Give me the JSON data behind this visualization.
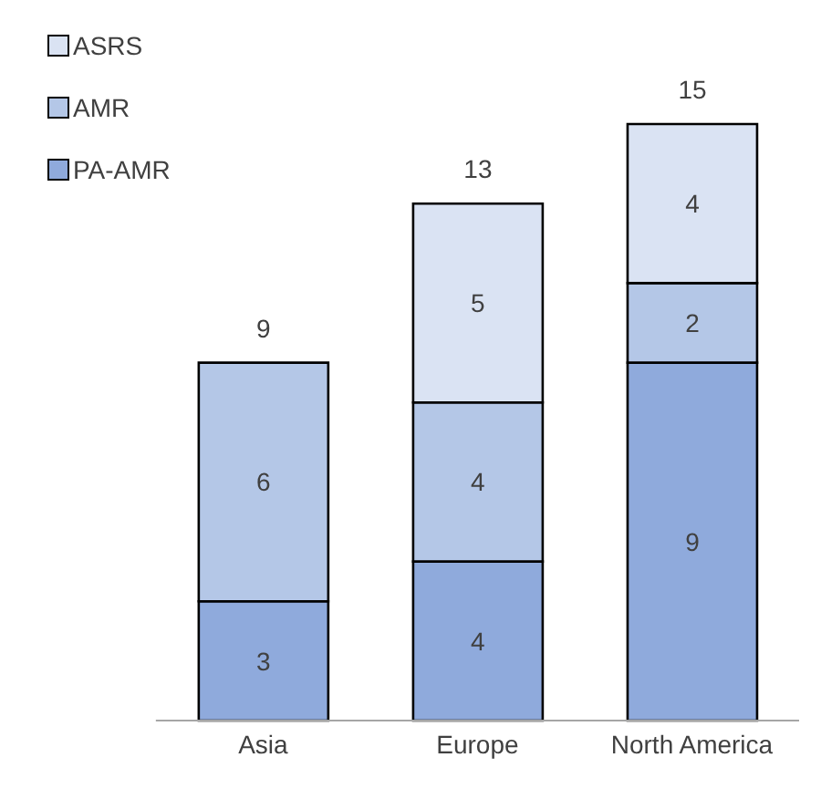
{
  "chart_data": {
    "type": "bar",
    "stacked": true,
    "categories": [
      "Asia",
      "Europe",
      "North America"
    ],
    "series": [
      {
        "name": "PA-AMR",
        "color": "#8faadc",
        "values": [
          3,
          4,
          9
        ]
      },
      {
        "name": "AMR",
        "color": "#b4c7e7",
        "values": [
          6,
          4,
          2
        ]
      },
      {
        "name": "ASRS",
        "color": "#dae3f3",
        "values": [
          null,
          5,
          4
        ]
      }
    ],
    "data_labels": true,
    "totals": [
      "9",
      "13",
      "15"
    ],
    "legend": "top left"
  }
}
